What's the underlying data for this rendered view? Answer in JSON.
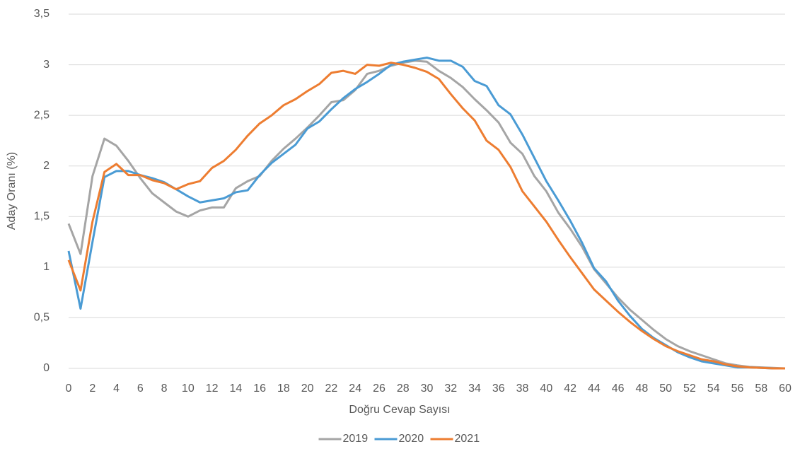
{
  "chart_data": {
    "type": "line",
    "x_label": "Doğru Cevap Sayısı",
    "y_label": "Aday Oranı (%)",
    "x": [
      0,
      1,
      2,
      3,
      4,
      5,
      6,
      7,
      8,
      9,
      10,
      11,
      12,
      13,
      14,
      15,
      16,
      17,
      18,
      19,
      20,
      21,
      22,
      23,
      24,
      25,
      26,
      27,
      28,
      29,
      30,
      31,
      32,
      33,
      34,
      35,
      36,
      37,
      38,
      39,
      40,
      41,
      42,
      43,
      44,
      45,
      46,
      47,
      48,
      49,
      50,
      51,
      52,
      53,
      54,
      55,
      56,
      57,
      58,
      59,
      60
    ],
    "series": [
      {
        "name": "2019",
        "color": "#a5a5a5",
        "values": [
          1.43,
          1.13,
          1.9,
          2.27,
          2.2,
          2.05,
          1.88,
          1.73,
          1.64,
          1.55,
          1.5,
          1.56,
          1.59,
          1.59,
          1.78,
          1.85,
          1.9,
          2.05,
          2.17,
          2.27,
          2.38,
          2.5,
          2.63,
          2.65,
          2.75,
          2.91,
          2.94,
          2.99,
          3.02,
          3.04,
          3.03,
          2.94,
          2.87,
          2.78,
          2.66,
          2.55,
          2.43,
          2.23,
          2.12,
          1.9,
          1.75,
          1.54,
          1.38,
          1.2,
          0.98,
          0.84,
          0.7,
          0.58,
          0.48,
          0.38,
          0.29,
          0.22,
          0.17,
          0.13,
          0.09,
          0.05,
          0.03,
          0.015,
          0.01,
          0.005,
          0
        ]
      },
      {
        "name": "2020",
        "color": "#4a9bd4",
        "values": [
          1.16,
          0.59,
          1.25,
          1.89,
          1.95,
          1.95,
          1.91,
          1.88,
          1.84,
          1.77,
          1.7,
          1.64,
          1.66,
          1.68,
          1.74,
          1.76,
          1.91,
          2.03,
          2.12,
          2.21,
          2.37,
          2.44,
          2.56,
          2.67,
          2.76,
          2.83,
          2.91,
          3.0,
          3.03,
          3.05,
          3.07,
          3.04,
          3.04,
          2.98,
          2.84,
          2.79,
          2.6,
          2.51,
          2.31,
          2.08,
          1.85,
          1.66,
          1.46,
          1.24,
          0.99,
          0.86,
          0.67,
          0.52,
          0.39,
          0.3,
          0.23,
          0.16,
          0.11,
          0.07,
          0.05,
          0.03,
          0.01,
          0.01,
          0.005,
          0,
          0
        ]
      },
      {
        "name": "2021",
        "color": "#ed7d31",
        "values": [
          1.07,
          0.77,
          1.45,
          1.94,
          2.02,
          1.91,
          1.91,
          1.86,
          1.83,
          1.77,
          1.82,
          1.85,
          1.98,
          2.05,
          2.16,
          2.3,
          2.42,
          2.5,
          2.6,
          2.66,
          2.74,
          2.81,
          2.92,
          2.94,
          2.91,
          3.0,
          2.99,
          3.02,
          3.0,
          2.97,
          2.93,
          2.86,
          2.71,
          2.57,
          2.45,
          2.25,
          2.16,
          1.99,
          1.75,
          1.6,
          1.45,
          1.27,
          1.1,
          0.94,
          0.78,
          0.67,
          0.56,
          0.46,
          0.37,
          0.29,
          0.22,
          0.17,
          0.13,
          0.09,
          0.07,
          0.04,
          0.02,
          0.01,
          0.005,
          0,
          0
        ]
      }
    ],
    "xlim": [
      0,
      60
    ],
    "xticks": [
      0,
      2,
      4,
      6,
      8,
      10,
      12,
      14,
      16,
      18,
      20,
      22,
      24,
      26,
      28,
      30,
      32,
      34,
      36,
      38,
      40,
      42,
      44,
      46,
      48,
      50,
      52,
      54,
      56,
      58,
      60
    ],
    "ylim": [
      0,
      3.5
    ],
    "yticks": [
      0,
      {
        "value": 0.5,
        "label": "0,5"
      },
      1,
      {
        "value": 1.5,
        "label": "1,5"
      },
      2,
      {
        "value": 2.5,
        "label": "2,5"
      },
      3,
      {
        "value": 3.5,
        "label": "3,5"
      }
    ],
    "grid": true,
    "legend": "bottom"
  }
}
